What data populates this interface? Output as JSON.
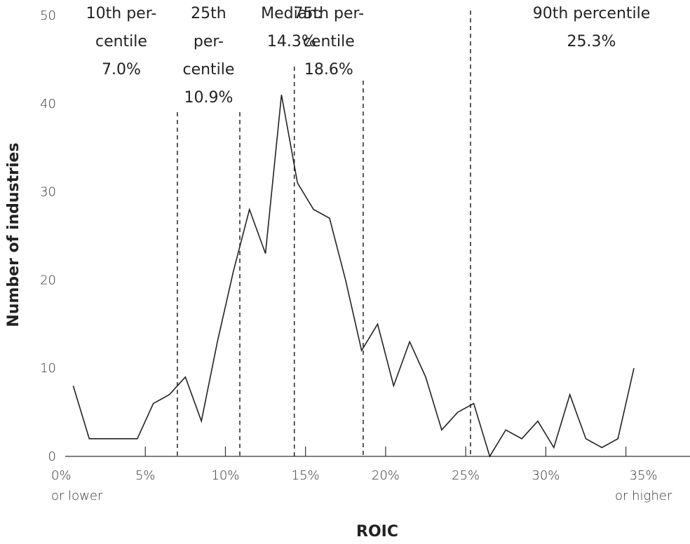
{
  "chart_data": {
    "type": "line",
    "x_label": "ROIC",
    "y_label": "Number of industries",
    "x": [
      0.5,
      1.5,
      2.5,
      3.5,
      4.5,
      5.5,
      6.5,
      7.5,
      8.5,
      9.5,
      10.5,
      11.5,
      12.5,
      13.5,
      14.5,
      15.5,
      16.5,
      17.5,
      18.5,
      19.5,
      20.5,
      21.5,
      22.5,
      23.5,
      24.5,
      25.5,
      26.5,
      27.5,
      28.5,
      29.5,
      30.5,
      31.5,
      32.5,
      33.5,
      34.5,
      35.5
    ],
    "values": [
      8,
      2,
      2,
      2,
      2,
      6,
      7,
      9,
      4,
      13,
      21,
      28,
      23,
      41,
      31,
      28,
      27,
      20,
      12,
      15,
      8,
      13,
      9,
      3,
      5,
      6,
      0,
      3,
      2,
      4,
      1,
      7,
      2,
      1,
      2,
      10
    ],
    "color": "#222222",
    "xlim": [
      0,
      39
    ],
    "ylim": [
      0,
      50
    ],
    "xticks": [
      {
        "value": 0,
        "label": "0%\nor lower"
      },
      {
        "value": 5,
        "label": "5%"
      },
      {
        "value": 10,
        "label": "10%"
      },
      {
        "value": 15,
        "label": "15%"
      },
      {
        "value": 20,
        "label": "20%"
      },
      {
        "value": 25,
        "label": "25%"
      },
      {
        "value": 30,
        "label": "30%"
      },
      {
        "value": 35,
        "label": "35%\nor higher"
      }
    ],
    "yticks": [
      0,
      10,
      20,
      30,
      40,
      50
    ],
    "annotations": [
      {
        "label": "10th per-\ncentile\n7.0%",
        "value": 7.0
      },
      {
        "label": "25th\nper-\ncentile\n10.9%",
        "value": 10.9
      },
      {
        "label": "Median:\n14.3%",
        "value": 14.3
      },
      {
        "label": "75th per-\ncentile\n18.6%",
        "value": 18.6
      },
      {
        "label": "90th percentile\n25.3%",
        "value": 25.3
      }
    ]
  }
}
